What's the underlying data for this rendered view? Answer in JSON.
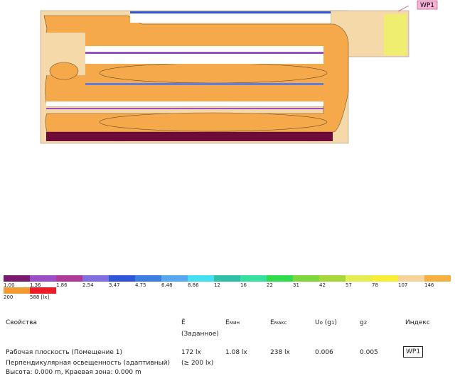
{
  "plan": {
    "tag": "WP1"
  },
  "legend": [
    {
      "label": "1.00",
      "color": "#7a1a6e"
    },
    {
      "label": "1.36",
      "color": "#9a4fc8"
    },
    {
      "label": "1.86",
      "color": "#b03a98"
    },
    {
      "label": "2.54",
      "color": "#7f6fe0"
    },
    {
      "label": "3.47",
      "color": "#2f56d8"
    },
    {
      "label": "4.75",
      "color": "#3d7fe0"
    },
    {
      "label": "6.48",
      "color": "#56a8f0"
    },
    {
      "label": "8.86",
      "color": "#44e0f0"
    },
    {
      "label": "12",
      "color": "#2fc0a8"
    },
    {
      "label": "16",
      "color": "#38e0a0"
    },
    {
      "label": "22",
      "color": "#2fdc4c"
    },
    {
      "label": "31",
      "color": "#7cd83c"
    },
    {
      "label": "42",
      "color": "#a8d838"
    },
    {
      "label": "57",
      "color": "#e4ee50"
    },
    {
      "label": "78",
      "color": "#f8ee38"
    },
    {
      "label": "107",
      "color": "#f5d39a"
    },
    {
      "label": "146",
      "color": "#f5b040"
    },
    {
      "label": "200",
      "color": "#f59a30"
    },
    {
      "label": "588 [lx]",
      "color": "#ee1c24"
    }
  ],
  "table": {
    "headers": {
      "props": "Свойства",
      "eavg": "Ē",
      "eavg_note": "(Заданное)",
      "emin": "E",
      "emin_sub": "мин",
      "emax": "E",
      "emax_sub": "макс",
      "u0": "U",
      "u0_sub": "o",
      "u0_rest": " (g",
      "u0_g": "1",
      "u0_close": ")",
      "g2": "g",
      "g2_sub": "2",
      "index": "Индекс"
    },
    "row": {
      "name": "Рабочая плоскость (Помещение 1)",
      "kind": "Перпендикулярная освещенность (адаптивный)",
      "height": "Высота: 0.000 m, Краевая зона: 0.000 m",
      "eavg": "172 lx",
      "eavg_target": "(≥ 200 lx)",
      "emin": "1.08 lx",
      "emax": "238 lx",
      "u0": "0.006",
      "g2": "0.005",
      "index": "WP1"
    }
  }
}
